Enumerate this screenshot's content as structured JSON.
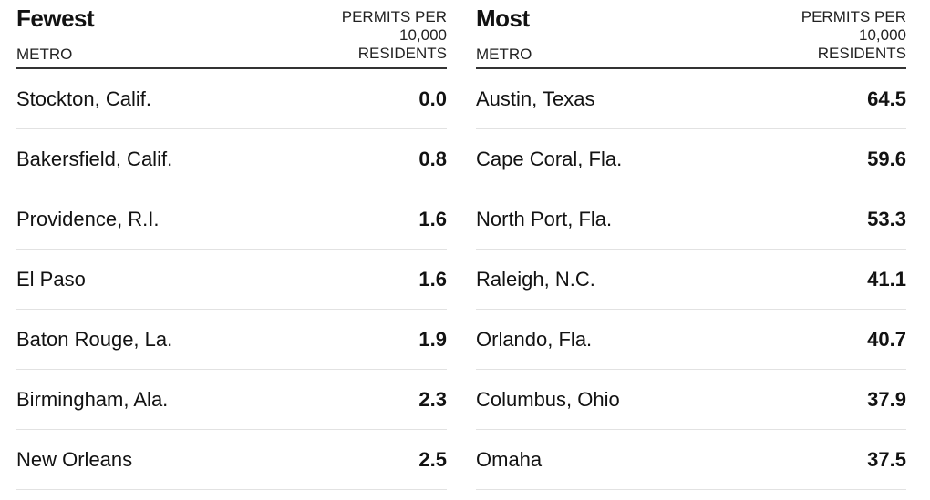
{
  "chart_data": [
    {
      "type": "table",
      "title": "Fewest",
      "columns": [
        "METRO",
        "PERMITS PER 10,000 RESIDENTS"
      ],
      "rows": [
        {
          "metro": "Stockton, Calif.",
          "value": "0.0"
        },
        {
          "metro": "Bakersfield, Calif.",
          "value": "0.8"
        },
        {
          "metro": "Providence, R.I.",
          "value": "1.6"
        },
        {
          "metro": "El Paso",
          "value": "1.6"
        },
        {
          "metro": "Baton Rouge, La.",
          "value": "1.9"
        },
        {
          "metro": "Birmingham, Ala.",
          "value": "2.3"
        },
        {
          "metro": "New Orleans",
          "value": "2.5"
        }
      ]
    },
    {
      "type": "table",
      "title": "Most",
      "columns": [
        "METRO",
        "PERMITS PER 10,000 RESIDENTS"
      ],
      "rows": [
        {
          "metro": "Austin, Texas",
          "value": "64.5"
        },
        {
          "metro": "Cape Coral, Fla.",
          "value": "59.6"
        },
        {
          "metro": "North Port, Fla.",
          "value": "53.3"
        },
        {
          "metro": "Raleigh, N.C.",
          "value": "41.1"
        },
        {
          "metro": "Orlando, Fla.",
          "value": "40.7"
        },
        {
          "metro": "Columbus, Ohio",
          "value": "37.9"
        },
        {
          "metro": "Omaha",
          "value": "37.5"
        }
      ]
    }
  ]
}
